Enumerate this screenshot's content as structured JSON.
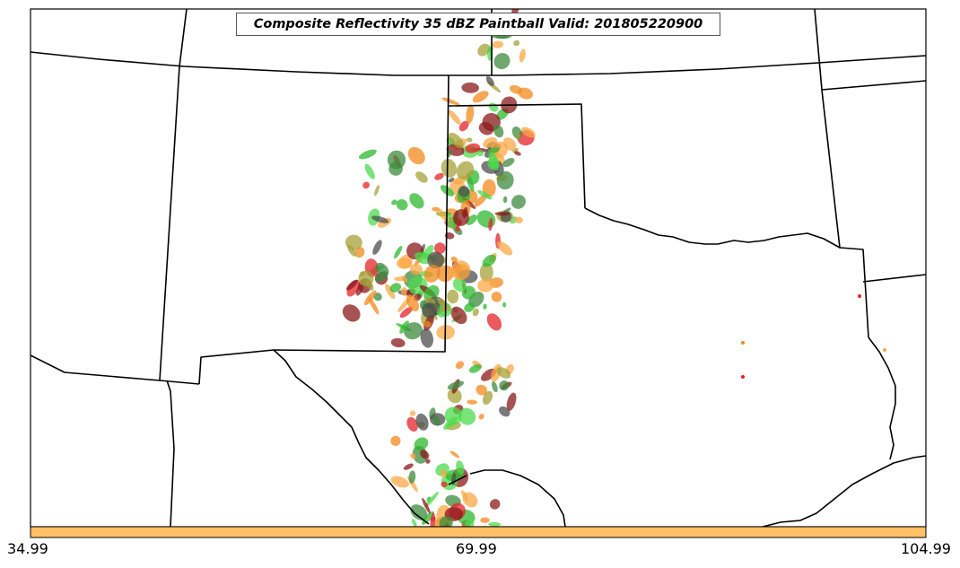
{
  "map": {
    "title": "Composite Reflectivity 35 dBZ Paintball Valid: 201805220900",
    "border_color": "#000000",
    "background_color": "#ffffff"
  },
  "colorbar": {
    "fill_color": "#ffc066",
    "tick_labels": [
      "34.99",
      "69.99",
      "104.99"
    ]
  },
  "paintball_colors": {
    "red": "#e3232a",
    "orange": "#f28a1e",
    "light_orange": "#f9a845",
    "dark_red": "#8b1a1a",
    "olive": "#a6a23a",
    "dark_green": "#3d8b3d",
    "green": "#2db82d",
    "light_green": "#4cdb4c",
    "gray": "#4d4d4d"
  }
}
